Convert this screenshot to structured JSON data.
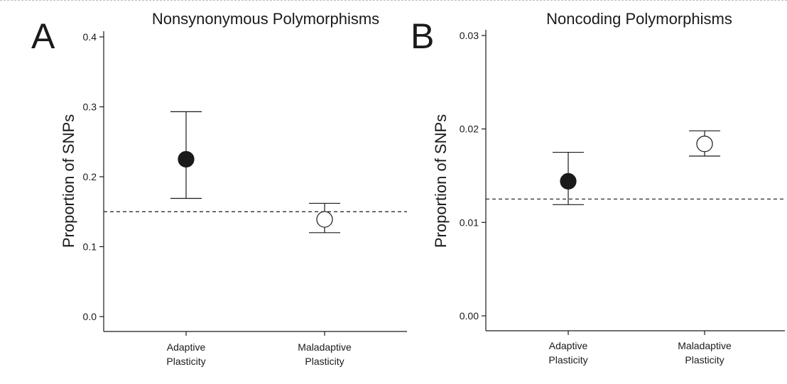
{
  "chart_data": [
    {
      "type": "scatter",
      "panel_label": "A",
      "title": "Nonsynonymous Polymorphisms",
      "ylabel": "Proportion of SNPs",
      "xlabel": "",
      "categories": [
        [
          "Adaptive",
          "Plasticity"
        ],
        [
          "Maladaptive",
          "Plasticity"
        ]
      ],
      "values": [
        0.225,
        0.139
      ],
      "error_low": [
        0.169,
        0.12
      ],
      "error_high": [
        0.293,
        0.162
      ],
      "marker_fill": [
        "#1a1a1a",
        "#ffffff"
      ],
      "reference_line": 0.15,
      "ylim": [
        0.0,
        0.4
      ],
      "yticks": [
        "0.0",
        "0.1",
        "0.2",
        "0.3",
        "0.4"
      ],
      "grid": false
    },
    {
      "type": "scatter",
      "panel_label": "B",
      "title": "Noncoding Polymorphisms",
      "ylabel": "Proportion of SNPs",
      "xlabel": "",
      "categories": [
        [
          "Adaptive",
          "Plasticity"
        ],
        [
          "Maladaptive",
          "Plasticity"
        ]
      ],
      "values": [
        0.0144,
        0.0184
      ],
      "error_low": [
        0.0119,
        0.0171
      ],
      "error_high": [
        0.0175,
        0.0198
      ],
      "marker_fill": [
        "#1a1a1a",
        "#ffffff"
      ],
      "reference_line": 0.0125,
      "ylim": [
        0.0,
        0.03
      ],
      "yticks": [
        "0.00",
        "0.01",
        "0.02",
        "0.03"
      ],
      "grid": false
    }
  ]
}
